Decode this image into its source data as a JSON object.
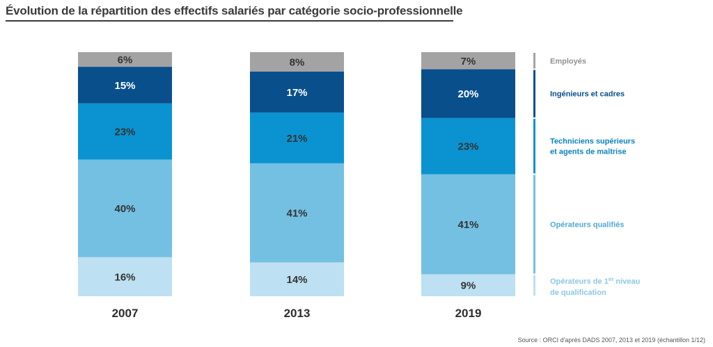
{
  "title": "Évolution de la répartition des effectifs salariés par catégorie socio-professionnelle",
  "source": "Source : ORCI d'après DADS 2007, 2013 et 2019 (échantillon 1/12)",
  "chart_data": {
    "type": "bar",
    "stacked": true,
    "categories": [
      "2007",
      "2013",
      "2019"
    ],
    "ylim": [
      0,
      100
    ],
    "legend_position": "right",
    "grid": false,
    "series": [
      {
        "name": "Opérateurs de 1er niveau de qualification",
        "values": [
          16,
          14,
          9
        ],
        "color": "#bde0f2"
      },
      {
        "name": "Opérateurs qualifiés",
        "values": [
          40,
          41,
          41
        ],
        "color": "#74c0e2"
      },
      {
        "name": "Techniciens supérieurs et agents de maîtrise",
        "values": [
          23,
          21,
          23
        ],
        "color": "#0a93d0"
      },
      {
        "name": "Ingénieurs et cadres",
        "values": [
          15,
          17,
          20
        ],
        "color": "#084f8c"
      },
      {
        "name": "Employés",
        "values": [
          6,
          8,
          7
        ],
        "color": "#a3a3a3"
      }
    ],
    "value_labels": [
      [
        "16%",
        "40%",
        "23%",
        "15%",
        "6%"
      ],
      [
        "14%",
        "41%",
        "21%",
        "17%",
        "8%"
      ],
      [
        "9%",
        "41%",
        "23%",
        "20%",
        "7%"
      ]
    ],
    "legend": [
      {
        "lines": [
          "Employés"
        ],
        "color": "#909090",
        "bar": "#a3a3a3"
      },
      {
        "lines": [
          "Ingénieurs et cadres"
        ],
        "color": "#084f8c",
        "bar": "#084f8c"
      },
      {
        "lines": [
          "Techniciens supérieurs",
          "et agents de maîtrise"
        ],
        "color": "#0a82bf",
        "bar": "#0a93d0"
      },
      {
        "lines": [
          "Opérateurs qualifiés"
        ],
        "color": "#4fa9d6",
        "bar": "#74c0e2"
      },
      {
        "lines": [
          "Opérateurs de 1",
          "er",
          " niveau",
          "de qualification"
        ],
        "color": "#8cc7e6",
        "bar": "#bde0f2"
      }
    ]
  }
}
